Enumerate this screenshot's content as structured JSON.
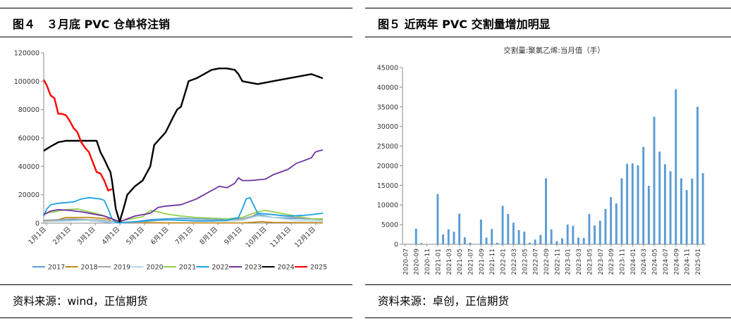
{
  "panels": {
    "left": {
      "title": "图４　３月底 PVC 仓单将注销",
      "source": "资料来源：wind，正信期货"
    },
    "right": {
      "title": "图５ 近两年 PVC 交割量增加明显",
      "source": "资料来源：卓创，正信期货"
    }
  },
  "chart_data": [
    {
      "type": "line",
      "x_tick_labels": [
        "1月1日",
        "2月1日",
        "3月1日",
        "4月1日",
        "5月1日",
        "6月1日",
        "7月1日",
        "8月1日",
        "9月1日",
        "10月1日",
        "11月1日",
        "12月1日"
      ],
      "ylim": [
        0,
        120000
      ],
      "y_tick_labels": [
        "0",
        "20000",
        "40000",
        "60000",
        "80000",
        "100000",
        "120000"
      ],
      "legend_position": "bottom",
      "series": [
        {
          "name": "2017",
          "color": "#5b9bd5",
          "x": [
            1,
            30,
            50,
            60,
            75,
            85,
            95,
            120,
            140,
            160,
            180,
            200,
            230,
            260,
            275,
            280,
            300,
            320,
            345,
            365
          ],
          "y": [
            1500,
            2000,
            2500,
            1800,
            1200,
            600,
            300,
            1000,
            2500,
            3000,
            3500,
            3000,
            2500,
            3000,
            5000,
            6000,
            4000,
            3500,
            3000,
            2500
          ]
        },
        {
          "name": "2018",
          "color": "#c58a1c",
          "x": [
            1,
            20,
            30,
            60,
            85,
            90,
            100,
            140,
            180,
            220,
            260,
            285,
            300,
            365
          ],
          "y": [
            1500,
            2500,
            4000,
            4000,
            3000,
            1000,
            500,
            300,
            200,
            200,
            200,
            1000,
            500,
            300
          ]
        },
        {
          "name": "2019",
          "color": "#a5a5a5",
          "x": [
            1,
            20,
            40,
            60,
            80,
            95,
            100,
            130,
            150,
            180,
            200,
            230,
            255,
            270,
            280,
            300,
            330,
            350,
            365
          ],
          "y": [
            2000,
            2500,
            3000,
            2500,
            2000,
            800,
            300,
            800,
            2000,
            2500,
            2500,
            2000,
            2500,
            4000,
            7000,
            6000,
            4000,
            3000,
            2500
          ]
        },
        {
          "name": "2020",
          "color": "#b4d9ea",
          "x": [
            1,
            30,
            60,
            85,
            95,
            100,
            130,
            160,
            190,
            210,
            240,
            260,
            270,
            280,
            300,
            330,
            365
          ],
          "y": [
            1000,
            1500,
            2000,
            1000,
            300,
            100,
            1500,
            2500,
            2500,
            2000,
            1500,
            2000,
            3500,
            5000,
            4000,
            2000,
            1500
          ]
        },
        {
          "name": "2021",
          "color": "#92d050",
          "x": [
            1,
            15,
            30,
            45,
            60,
            75,
            90,
            95,
            110,
            130,
            140,
            150,
            160,
            180,
            200,
            220,
            240,
            260,
            270,
            280,
            290,
            300,
            320,
            340,
            350,
            365
          ],
          "y": [
            7000,
            8000,
            9500,
            10000,
            8000,
            6000,
            3000,
            1000,
            2500,
            4500,
            9000,
            8000,
            6500,
            5000,
            4000,
            3500,
            3000,
            4000,
            6000,
            8000,
            9000,
            8000,
            6000,
            4000,
            3000,
            3000
          ]
        },
        {
          "name": "2022",
          "color": "#1ba1e2",
          "x": [
            1,
            5,
            10,
            20,
            40,
            50,
            60,
            75,
            80,
            85,
            90,
            95,
            100,
            120,
            140,
            160,
            180,
            200,
            220,
            240,
            255,
            260,
            265,
            270,
            280,
            300,
            320,
            340,
            350,
            365
          ],
          "y": [
            5000,
            10000,
            13000,
            14000,
            15000,
            17000,
            18000,
            17000,
            16000,
            10000,
            3000,
            500,
            200,
            1000,
            2000,
            2500,
            2000,
            1500,
            1500,
            2000,
            4000,
            10000,
            17000,
            18000,
            7000,
            6000,
            5000,
            5500,
            6000,
            7000
          ]
        },
        {
          "name": "2023",
          "color": "#7030a0",
          "x": [
            1,
            10,
            20,
            35,
            50,
            60,
            80,
            90,
            100,
            110,
            120,
            140,
            150,
            160,
            180,
            200,
            220,
            230,
            240,
            250,
            255,
            260,
            270,
            290,
            300,
            320,
            330,
            340,
            350,
            355,
            360,
            365
          ],
          "y": [
            6000,
            8500,
            9500,
            9000,
            8000,
            7000,
            5000,
            3000,
            1000,
            3000,
            5000,
            7000,
            11000,
            12000,
            13000,
            17000,
            23000,
            26000,
            25000,
            28000,
            32000,
            30000,
            30000,
            31000,
            34000,
            38000,
            42000,
            44000,
            46000,
            50000,
            51000,
            51500
          ]
        },
        {
          "name": "2024",
          "color": "#000000",
          "x": [
            1,
            10,
            20,
            30,
            50,
            60,
            70,
            75,
            80,
            85,
            88,
            90,
            95,
            100,
            105,
            110,
            120,
            130,
            140,
            145,
            150,
            160,
            170,
            175,
            180,
            190,
            200,
            210,
            220,
            230,
            240,
            250,
            255,
            260,
            270,
            280,
            290,
            300,
            310,
            320,
            330,
            340,
            350,
            355,
            360,
            365
          ],
          "y": [
            51000,
            54000,
            57000,
            58000,
            58000,
            58000,
            58000,
            50000,
            45000,
            39000,
            36000,
            30000,
            10000,
            1000,
            10000,
            20000,
            26000,
            30000,
            40000,
            55000,
            58000,
            64000,
            75000,
            80000,
            82000,
            100000,
            102000,
            105000,
            108000,
            109000,
            109000,
            108000,
            105000,
            100000,
            99000,
            98000,
            99000,
            100000,
            101000,
            102000,
            103000,
            104000,
            105000,
            104000,
            103000,
            102000
          ]
        },
        {
          "name": "2025",
          "color": "#ff0000",
          "x": [
            1,
            5,
            10,
            15,
            20,
            25,
            30,
            35,
            40,
            45,
            50,
            55,
            60,
            65,
            70,
            75,
            80,
            85,
            90
          ],
          "y": [
            101000,
            97000,
            90000,
            88000,
            77000,
            77000,
            76000,
            72000,
            67000,
            64000,
            57000,
            53000,
            50000,
            43000,
            36000,
            35000,
            30000,
            23000,
            24000
          ]
        }
      ]
    },
    {
      "type": "bar",
      "title": "交割量:聚氯乙烯:当月值（手）",
      "ylim": [
        0,
        45000
      ],
      "y_tick_labels": [
        "0",
        "5000",
        "10000",
        "15000",
        "20000",
        "25000",
        "30000",
        "35000",
        "40000",
        "45000"
      ],
      "series_color": "#5b9bd5",
      "categories": [
        "2020-07",
        "2020-08",
        "2020-09",
        "2020-10",
        "2020-11",
        "2020-12",
        "2021-01",
        "2021-02",
        "2021-03",
        "2021-04",
        "2021-05",
        "2021-06",
        "2021-07",
        "2021-08",
        "2021-09",
        "2021-10",
        "2021-11",
        "2021-12",
        "2022-01",
        "2022-02",
        "2022-03",
        "2022-04",
        "2022-05",
        "2022-06",
        "2022-07",
        "2022-08",
        "2022-09",
        "2022-10",
        "2022-11",
        "2022-12",
        "2023-01",
        "2023-02",
        "2023-03",
        "2023-04",
        "2023-05",
        "2023-06",
        "2023-07",
        "2023-08",
        "2023-09",
        "2023-10",
        "2023-11",
        "2023-12",
        "2024-01",
        "2024-02",
        "2024-03",
        "2024-04",
        "2024-05",
        "2024-06",
        "2024-07",
        "2024-08",
        "2024-09",
        "2024-10",
        "2024-11",
        "2024-12",
        "2025-01",
        "2025-02"
      ],
      "category_tick_labels": [
        "2020-07",
        "2020-09",
        "2020-11",
        "2021-01",
        "2021-03",
        "2021-05",
        "2021-07",
        "2021-09",
        "2021-11",
        "2022-01",
        "2022-03",
        "2022-05",
        "2022-07",
        "2022-09",
        "2022-11",
        "2023-01",
        "2023-03",
        "2023-05",
        "2023-07",
        "2023-09",
        "2023-11",
        "2024-01",
        "2024-03",
        "2024-05",
        "2024-07",
        "2024-09",
        "2024-11",
        "2025-01"
      ],
      "values": [
        0,
        0,
        4000,
        300,
        0,
        0,
        12800,
        2500,
        3800,
        3200,
        7800,
        1800,
        400,
        0,
        6300,
        1700,
        3900,
        400,
        9800,
        7700,
        5500,
        3600,
        3200,
        400,
        1200,
        2400,
        16800,
        3800,
        800,
        1500,
        5000,
        4700,
        1700,
        1600,
        7700,
        4800,
        6000,
        9000,
        12000,
        10400,
        16800,
        20500,
        20600,
        20100,
        24800,
        14900,
        32500,
        23600,
        20400,
        18600,
        39500,
        16800,
        13800,
        16700,
        35000,
        18100
      ]
    }
  ]
}
